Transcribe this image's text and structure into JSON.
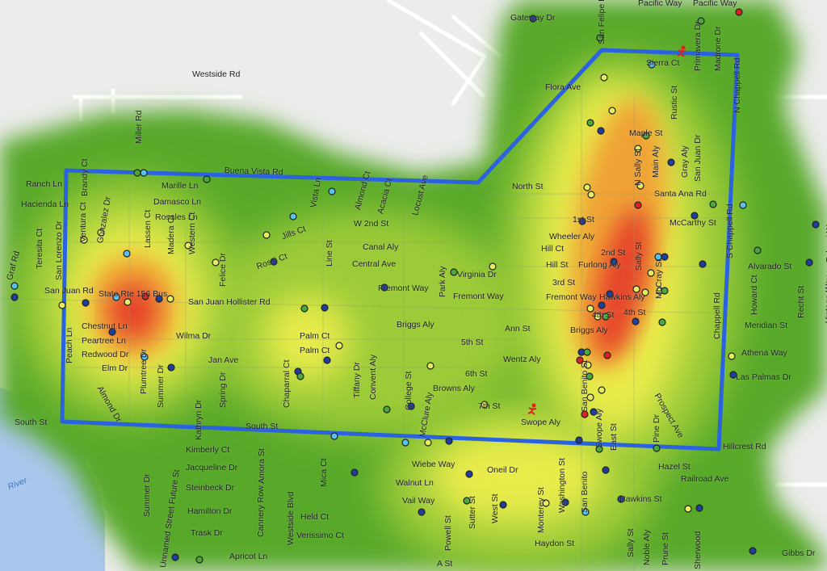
{
  "map": {
    "colors": {
      "background": "#ececec",
      "water": "#a9c6ec",
      "boundary": "#2a62e0",
      "heat_low": "#58a92c",
      "heat_mid_low": "#9bcb38",
      "heat_mid": "#e9ec4c",
      "heat_high": "#f0a334",
      "heat_peak": "#e6452a"
    },
    "point_colors": {
      "dark_blue": "#1f3f9e",
      "light_blue": "#56c3f2",
      "green": "#4aa93a",
      "yellow": "#e6ee60",
      "red": "#e02020"
    },
    "incident_icon": "running-person-icon",
    "streets": [
      "Westside Rd",
      "Buena Vista Rd",
      "Ranch Ln",
      "Hacienda Ln",
      "Marille Ln",
      "Damasco Ln",
      "Rosales Ln",
      "Ventura Ct",
      "Brandy Ct",
      "Gonzalez Dr",
      "Miller Rd",
      "Teresita Ct",
      "San Lorenzo Dr",
      "Graf Rd",
      "San Juan Rd",
      "State Rte 156 Bus",
      "San Juan Hollister Rd",
      "Lassen Ct",
      "Madera Ct",
      "Western Ct",
      "Felice Dr",
      "Chestnut Ln",
      "Peartree Ln",
      "Redwood Dr",
      "Elm Dr",
      "Plumtree Dr",
      "Summer Dr",
      "Almond Dr",
      "Peach Ln",
      "Wilma Dr",
      "Jan Ave",
      "Spring Dr",
      "Kathryn Dr",
      "Chaparral Ct",
      "Palm Ct",
      "Palm Ct",
      "Tiffany Dr",
      "Convent Aly",
      "Rossi Ct",
      "Jills Ct",
      "Vista Ln",
      "Line St",
      "Almond Ct",
      "Acacia Ct",
      "Locust Ave",
      "W 2nd St",
      "Canal Aly",
      "Central Ave",
      "Fremont Way",
      "Park Aly",
      "Virginia Dr",
      "Fremont Way",
      "Briggs Aly",
      "5th St",
      "Ann St",
      "Wentz Aly",
      "6th St",
      "Browns Aly",
      "7th St",
      "College St",
      "McClure Aly",
      "Swope Aly",
      "South St",
      "South St",
      "Kimberly Ct",
      "Jacqueline Dr",
      "Steinbeck Dr",
      "Hamilton Dr",
      "Trask Dr",
      "Apricot Ln",
      "Summer Dr",
      "Unnamed Street Future St",
      "Cannery Row",
      "Westside Blvd",
      "Amora St",
      "Mica Ct",
      "Held Ct",
      "Verissimo Ct",
      "Wiebe Way",
      "Walnut Ln",
      "Vail Way",
      "Oneil Dr",
      "Powell St",
      "Sutter St",
      "West St",
      "A St",
      "Monterey St",
      "Washington St",
      "Haydon St",
      "San Benito St",
      "San Benito",
      "Swope Aly",
      "East St",
      "Gateway Dr",
      "San Felipe Rd",
      "Pacific Way",
      "Pacific Way",
      "Primavera Dr",
      "Madrone Dr",
      "Sierra Ct",
      "N Chappell Rd",
      "Flora Ave",
      "Rustic St",
      "Maple St",
      "N Sally St",
      "Main Aly",
      "Gray Aly",
      "San Juan Dr",
      "North St",
      "Santa Ana Rd",
      "McCarthy St",
      "S Chappell Rd",
      "1st St",
      "Wheeler Aly",
      "Hill Ct",
      "Hill St",
      "Furlong Aly",
      "2nd St",
      "Sally St",
      "3rd St",
      "Fremont Way",
      "Hawkins Aly",
      "4th St",
      "4th St",
      "Briggs Aly",
      "McCray St",
      "Chappell Rd",
      "Alvarado St",
      "Howard Ct",
      "Recht St",
      "Meridian St",
      "Athena Way",
      "Las Palmas Dr",
      "Falconi Way",
      "Vintage Way",
      "Prospect Ave",
      "Pine Dr",
      "Hillcrest Rd",
      "Hazel St",
      "Railroad Ave",
      "Hawkins St",
      "Sally St",
      "Noble Aly",
      "Prune St",
      "Sherwood",
      "Gibbs Dr",
      "River"
    ]
  }
}
